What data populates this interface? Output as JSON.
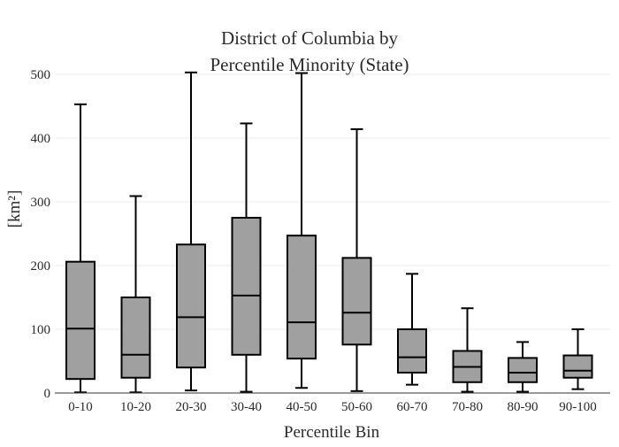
{
  "chart_data": {
    "type": "box",
    "title_lines": [
      "District of Columbia  by",
      "Percentile Minority (State)"
    ],
    "xlabel": "Percentile Bin",
    "ylabel": "[km²]",
    "ylim": [
      0,
      500
    ],
    "yticks": [
      0,
      100,
      200,
      300,
      400,
      500
    ],
    "grid": true,
    "box_color": "#a0a0a0",
    "categories": [
      "0-10",
      "10-20",
      "20-30",
      "30-40",
      "40-50",
      "50-60",
      "60-70",
      "70-80",
      "80-90",
      "90-100"
    ],
    "boxes": [
      {
        "min": 1,
        "q1": 22,
        "median": 101,
        "q3": 206,
        "max": 453
      },
      {
        "min": 1,
        "q1": 24,
        "median": 60,
        "q3": 150,
        "max": 309
      },
      {
        "min": 4,
        "q1": 40,
        "median": 119,
        "q3": 233,
        "max": 503
      },
      {
        "min": 2,
        "q1": 60,
        "median": 153,
        "q3": 275,
        "max": 423
      },
      {
        "min": 8,
        "q1": 54,
        "median": 111,
        "q3": 247,
        "max": 502
      },
      {
        "min": 3,
        "q1": 76,
        "median": 126,
        "q3": 212,
        "max": 414
      },
      {
        "min": 13,
        "q1": 32,
        "median": 56,
        "q3": 100,
        "max": 187
      },
      {
        "min": 2,
        "q1": 17,
        "median": 41,
        "q3": 66,
        "max": 133
      },
      {
        "min": 2,
        "q1": 17,
        "median": 32,
        "q3": 55,
        "max": 80
      },
      {
        "min": 6,
        "q1": 24,
        "median": 35,
        "q3": 59,
        "max": 100
      }
    ]
  }
}
